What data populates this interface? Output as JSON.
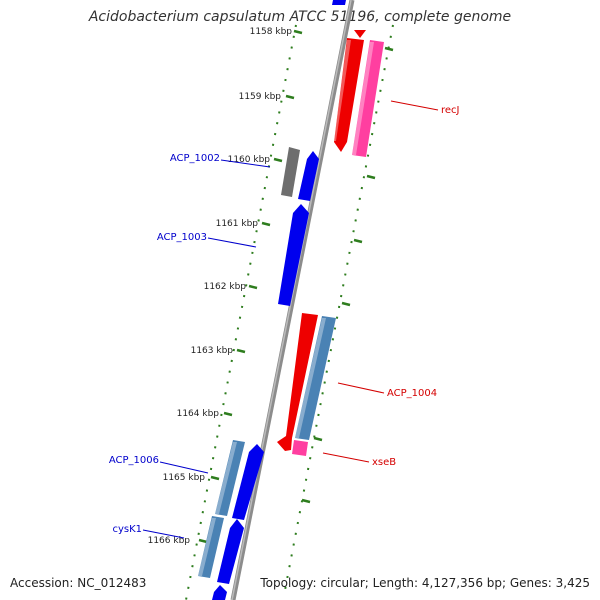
{
  "title": "Acidobacterium capsulatum ATCC 51196, complete genome",
  "footer": {
    "accession": "Accession: NC_012483",
    "topology": "Topology: circular; Length: 4,127,356 bp; Genes: 3,425"
  },
  "colors": {
    "backbone": "#8c8c8c",
    "tick": "#2e7d1e",
    "plus_strand_label": "#0000cc",
    "minus_strand_label": "#d40000",
    "gene_blue": "#0000ee",
    "gene_steel": "#4a82b4",
    "gene_gray": "#6e6e6e",
    "gene_red": "#ee0000",
    "gene_pink": "#ff3fa0"
  },
  "scale": {
    "labels": [
      "1158 kbp",
      "1159 kbp",
      "1160 kbp",
      "1161 kbp",
      "1162 kbp",
      "1163 kbp",
      "1164 kbp",
      "1165 kbp",
      "1166 kbp"
    ]
  },
  "genes": {
    "left_labels": [
      "ACP_1002",
      "ACP_1003",
      "ACP_1006",
      "cysK1"
    ],
    "right_labels": [
      "recJ",
      "ACP_1004",
      "xseB"
    ]
  }
}
